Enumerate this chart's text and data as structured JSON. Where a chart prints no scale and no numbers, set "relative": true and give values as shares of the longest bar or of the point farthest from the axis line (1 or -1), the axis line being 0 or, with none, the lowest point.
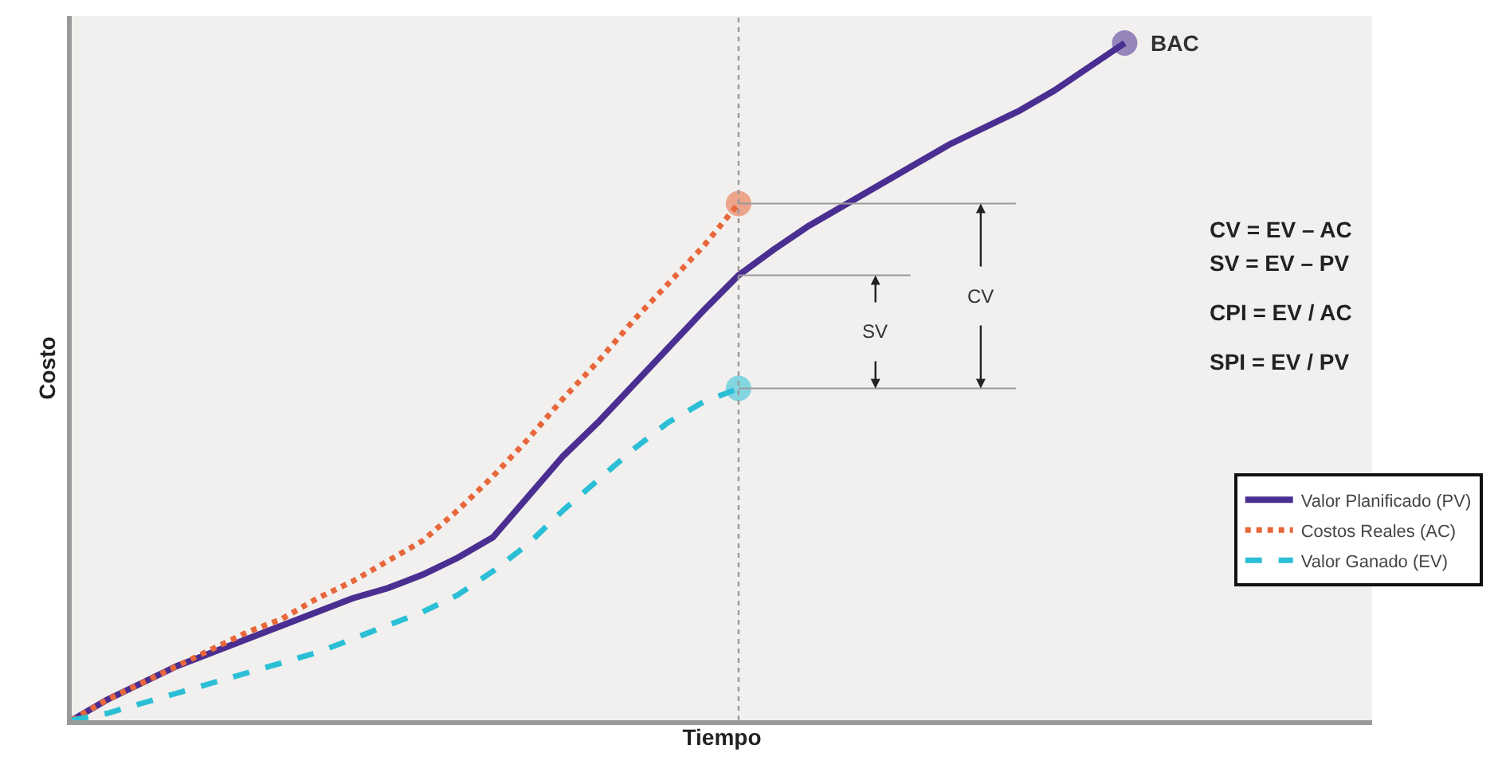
{
  "chart_data": {
    "type": "line",
    "relative": true,
    "xlabel": "Tiempo",
    "ylabel": "Costo",
    "categories": [
      null,
      null,
      null,
      null,
      null,
      null,
      null,
      null,
      null,
      null,
      null,
      null,
      null,
      null,
      null,
      null,
      null,
      null,
      null,
      null,
      null,
      null,
      null,
      null,
      null,
      null,
      null,
      null,
      null,
      null,
      null
    ],
    "tick_labels": false,
    "grid": false,
    "legend": "right",
    "ref_lines": [
      {
        "axis": "y",
        "value": 0.763,
        "color": "#9a9a9a"
      },
      {
        "axis": "y",
        "value": 0.657,
        "color": "#9a9a9a"
      },
      {
        "axis": "y",
        "value": 0.49,
        "color": "#9a9a9a"
      }
    ],
    "series": [
      {
        "name": "Valor Planificado (PV)",
        "color": "#4b2e91",
        "line_style": "solid",
        "values": [
          0,
          0.03,
          0.055,
          0.08,
          0.1,
          0.12,
          0.14,
          0.16,
          0.18,
          0.195,
          0.215,
          0.24,
          0.27,
          0.33,
          0.39,
          0.44,
          0.495,
          0.55,
          0.605,
          0.657,
          0.695,
          0.73,
          0.76,
          0.79,
          0.82,
          0.85,
          0.875,
          0.9,
          0.93,
          0.965,
          1.0
        ]
      },
      {
        "name": "Costos Reales (AC)",
        "color": "#e8673a",
        "line_style": "dotted",
        "values": [
          0,
          0.03,
          0.055,
          0.08,
          0.105,
          0.13,
          0.15,
          0.18,
          0.205,
          0.235,
          0.265,
          0.31,
          0.36,
          0.415,
          0.475,
          0.53,
          0.59,
          0.645,
          0.7,
          0.763,
          null,
          null,
          null,
          null,
          null,
          null,
          null,
          null,
          null,
          null,
          null
        ]
      },
      {
        "name": "Valor Ganado (EV)",
        "color": "#2bbfd6",
        "line_style": "dashed",
        "values": [
          0,
          0.01,
          0.025,
          0.04,
          0.055,
          0.07,
          0.085,
          0.1,
          0.12,
          0.14,
          0.16,
          0.185,
          0.22,
          0.26,
          0.31,
          0.355,
          0.4,
          0.44,
          0.47,
          0.49,
          null,
          null,
          null,
          null,
          null,
          null,
          null,
          null,
          null,
          null,
          null
        ]
      }
    ],
    "annotations": [
      "BAC",
      "SV",
      "CV",
      "CV = EV – AC",
      "SV = EV – PV",
      "CPI = EV / AC",
      "SPI = EV / PV"
    ]
  }
}
